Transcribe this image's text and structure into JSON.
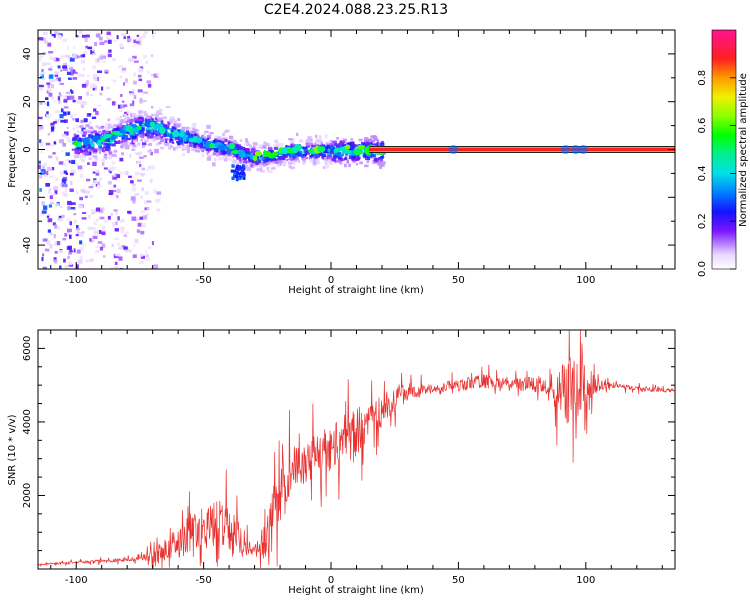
{
  "title": "C2E4.2024.088.23.25.R13",
  "colors": {
    "snr_line": "#e8302e",
    "carrier_line": "#ff1f1f",
    "carrier_edge": "#111111"
  },
  "chart_data": [
    {
      "type": "heatmap",
      "name": "spectrogram",
      "xlabel": "Height of straight line (km)",
      "ylabel": "Frequency (Hz)",
      "xlim": [
        -115,
        135
      ],
      "ylim": [
        -50,
        50
      ],
      "xticks": [
        -100,
        -50,
        0,
        50,
        100
      ],
      "yticks": [
        -40,
        -20,
        0,
        20,
        40
      ],
      "colorbar": {
        "label": "Normalized spectral amplitude",
        "range": [
          0.0,
          1.0
        ],
        "ticks": [
          0.0,
          0.2,
          0.4,
          0.6,
          0.8
        ],
        "tick_labels": [
          "0.0",
          "0.2",
          "0.4",
          "0.6",
          "0.8"
        ],
        "colormap": "gist_ncar-like"
      },
      "carrier_trace": {
        "x": [
          -100,
          -90,
          -80,
          -75,
          -70,
          -65,
          -60,
          -55,
          -50,
          -45,
          -40,
          -36,
          -30,
          -25,
          -20,
          -15,
          -10,
          -5,
          0,
          5,
          10,
          15,
          20,
          135
        ],
        "y": [
          3,
          4,
          8,
          10,
          10,
          8,
          6,
          5,
          3,
          2,
          1,
          -1,
          -3,
          -2,
          -1,
          0,
          0,
          0,
          0,
          0,
          0,
          0,
          0,
          0
        ]
      },
      "noise_region": {
        "x_range": [
          -115,
          -68
        ],
        "y_range": [
          -50,
          50
        ]
      },
      "scatter_region": {
        "x_range": [
          -68,
          20
        ],
        "y_half_width": 6
      },
      "side_blob": {
        "x": -37,
        "y": -9
      },
      "strong_line": {
        "x_start": 15,
        "x_end": 135,
        "y": 0
      }
    },
    {
      "type": "line",
      "name": "snr",
      "xlabel": "Height of straight line (km)",
      "ylabel": "SNR (10 * v/v)",
      "xlim": [
        -115,
        135
      ],
      "ylim": [
        0,
        6500
      ],
      "xticks": [
        -100,
        -50,
        0,
        50,
        100
      ],
      "yticks": [
        2000,
        4000,
        6000
      ],
      "baseline": {
        "x": [
          -115,
          -100,
          -80,
          -70,
          -60,
          -50,
          -40,
          -30,
          -25,
          -20,
          -15,
          -10,
          -5,
          0,
          5,
          10,
          15,
          20,
          25,
          30,
          40,
          50,
          60,
          70,
          80,
          90,
          100,
          110,
          120,
          135
        ],
        "y": [
          120,
          180,
          250,
          350,
          700,
          1100,
          1000,
          500,
          700,
          2300,
          2700,
          2900,
          3100,
          3300,
          3500,
          3800,
          4000,
          4300,
          4600,
          4800,
          4900,
          5000,
          5100,
          5050,
          5000,
          4800,
          5000,
          5000,
          4900,
          4850
        ]
      },
      "noise_profile": {
        "x": [
          -115,
          -75,
          -62,
          -55,
          -50,
          -45,
          -40,
          -35,
          -30,
          -25,
          -20,
          -10,
          0,
          10,
          20,
          40,
          50,
          60,
          70,
          85,
          90,
          95,
          100,
          105,
          110,
          135
        ],
        "amplitude": [
          40,
          100,
          700,
          1200,
          800,
          1500,
          1200,
          800,
          200,
          1500,
          1500,
          1000,
          1200,
          1400,
          700,
          200,
          300,
          350,
          250,
          500,
          1400,
          1700,
          1000,
          300,
          120,
          100
        ]
      }
    }
  ]
}
